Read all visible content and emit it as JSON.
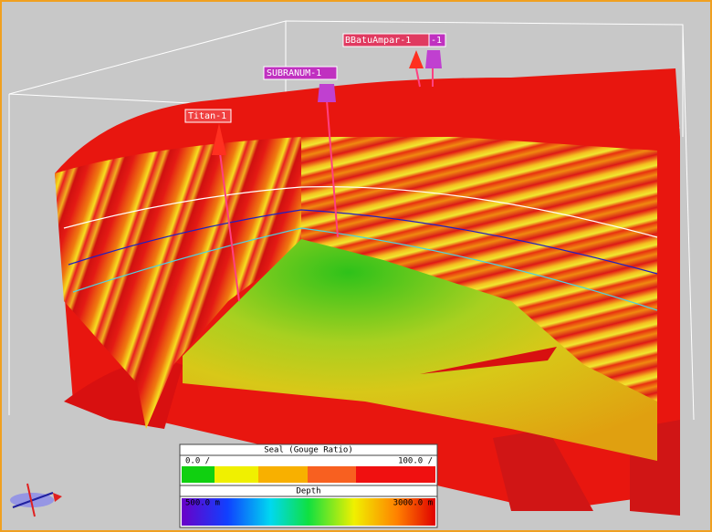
{
  "wells": [
    {
      "label": "Titan-1"
    },
    {
      "label": "SUBRANUM-1"
    },
    {
      "label": "BBatuAmpar-1"
    },
    {
      "label": "-1"
    }
  ],
  "legends": [
    {
      "title": "Seal (Gouge Ratio)",
      "min_label": "0.0 /",
      "max_label": "100.0 /"
    },
    {
      "title": "Depth",
      "min_label": "500.0 m",
      "max_label": "3000.0 m"
    }
  ]
}
